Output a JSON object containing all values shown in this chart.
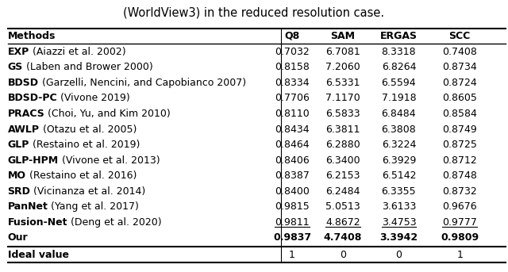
{
  "title": "(WorldView3) in the reduced resolution case.",
  "columns": [
    "Methods",
    "Q8",
    "SAM",
    "ERGAS",
    "SCC"
  ],
  "rows": [
    [
      [
        "EXP",
        " (Aiazzi et al. 2002)"
      ],
      "0.7032",
      "6.7081",
      "8.3318",
      "0.7408"
    ],
    [
      [
        "GS",
        " (Laben and Brower 2000)"
      ],
      "0.8158",
      "7.2060",
      "6.8264",
      "0.8734"
    ],
    [
      [
        "BDSD",
        " (Garzelli, Nencini, and Capobianco 2007)"
      ],
      "0.8334",
      "6.5331",
      "6.5594",
      "0.8724"
    ],
    [
      [
        "BDSD-PC",
        " (Vivone 2019)"
      ],
      "0.7706",
      "7.1170",
      "7.1918",
      "0.8605"
    ],
    [
      [
        "PRACS",
        " (Choi, Yu, and Kim 2010)"
      ],
      "0.8110",
      "6.5833",
      "6.8484",
      "0.8584"
    ],
    [
      [
        "AWLP",
        " (Otazu et al. 2005)"
      ],
      "0.8434",
      "6.3811",
      "6.3808",
      "0.8749"
    ],
    [
      [
        "GLP",
        " (Restaino et al. 2019)"
      ],
      "0.8464",
      "6.2880",
      "6.3224",
      "0.8725"
    ],
    [
      [
        "GLP-HPM",
        " (Vivone et al. 2013)"
      ],
      "0.8406",
      "6.3400",
      "6.3929",
      "0.8712"
    ],
    [
      [
        "MO",
        " (Restaino et al. 2016)"
      ],
      "0.8387",
      "6.2153",
      "6.5142",
      "0.8748"
    ],
    [
      [
        "SRD",
        " (Vicinanza et al. 2014)"
      ],
      "0.8400",
      "6.2484",
      "6.3355",
      "0.8732"
    ],
    [
      [
        "PanNet",
        " (Yang et al. 2017)"
      ],
      "0.9815",
      "5.0513",
      "3.6133",
      "0.9676"
    ],
    [
      [
        "Fusion-Net",
        " (Deng et al. 2020)"
      ],
      "0.9811",
      "4.8672",
      "3.4753",
      "0.9777"
    ],
    [
      [
        "Our",
        ""
      ],
      "0.9837",
      "4.7408",
      "3.3942",
      "0.9809"
    ]
  ],
  "ideal_row": [
    "Ideal value",
    "1",
    "0",
    "0",
    "1"
  ],
  "underline_row_idx": 11,
  "bold_row_idx": 12,
  "background_color": "#ffffff",
  "font_size": 9.0,
  "font_family": "DejaVu Sans"
}
